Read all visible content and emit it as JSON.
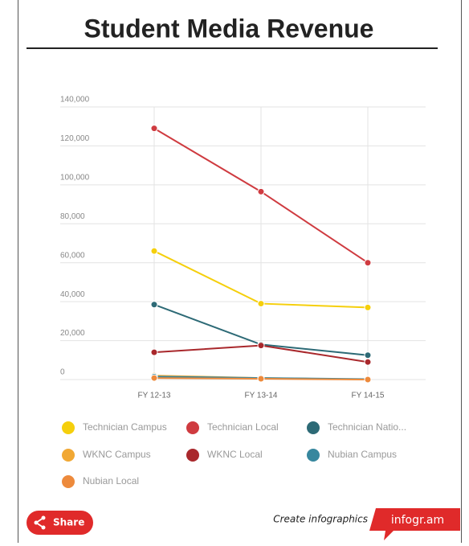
{
  "chart_data": {
    "type": "line",
    "title": "Student Media Revenue",
    "categories": [
      "FY 12-13",
      "FY 13-14",
      "FY 14-15"
    ],
    "series": [
      {
        "name": "Technician Campus",
        "color": "#f5cf0c",
        "values": [
          66000,
          39000,
          37000
        ]
      },
      {
        "name": "Technician Local",
        "color": "#cf3b40",
        "values": [
          129000,
          96500,
          60000
        ]
      },
      {
        "name": "Technician Natio...",
        "color": "#2d6a76",
        "values": [
          38500,
          18000,
          12500
        ]
      },
      {
        "name": "WKNC Campus",
        "color": "#f1a834",
        "values": [
          2000,
          800,
          0
        ]
      },
      {
        "name": "WKNC Local",
        "color": "#a9282c",
        "values": [
          14000,
          17500,
          9000
        ]
      },
      {
        "name": "Nubian Campus",
        "color": "#37879e",
        "values": [
          1500,
          800,
          200
        ]
      },
      {
        "name": "Nubian Local",
        "color": "#ed8a3c",
        "values": [
          800,
          400,
          0
        ]
      }
    ],
    "ylim": [
      0,
      140000
    ],
    "yticks": [
      0,
      {
        "value": 20000,
        "label": "20,000"
      },
      {
        "value": 40000,
        "label": "40,000"
      },
      {
        "value": 60000,
        "label": "60,000"
      },
      {
        "value": 80000,
        "label": "80,000"
      },
      {
        "value": 100000,
        "label": "100,000"
      },
      {
        "value": 120000,
        "label": "120,000"
      },
      {
        "value": 140000,
        "label": "140,000"
      }
    ],
    "grid": true
  },
  "footer": {
    "share": "Share",
    "create": "Create infographics",
    "brand": "infogr.am"
  }
}
